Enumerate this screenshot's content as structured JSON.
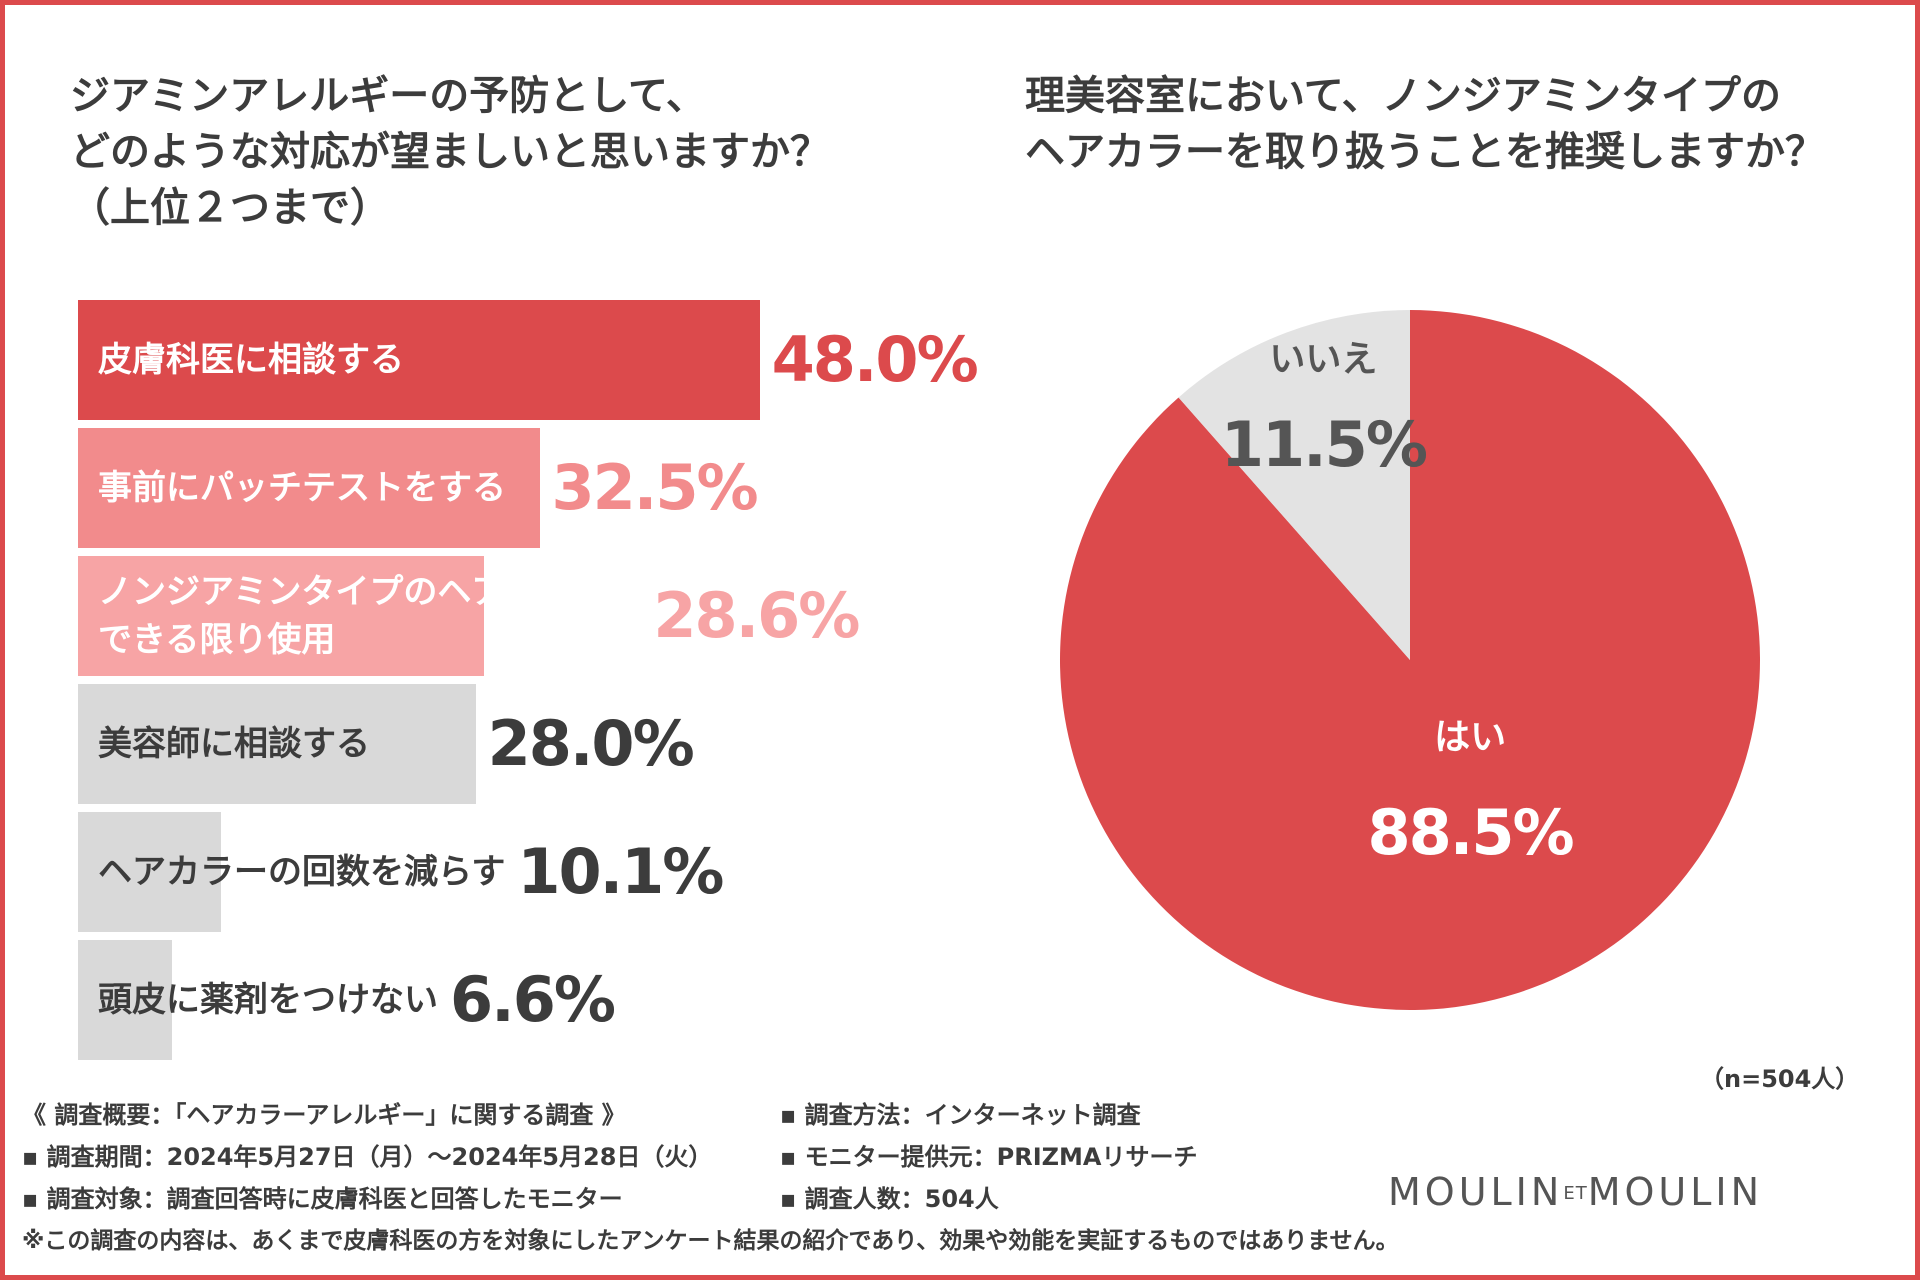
{
  "left_title": "ジアミンアレルギーの予防として、\nどのような対応が望ましいと思いますか？\n（上位２つまで）",
  "right_title": "理美容室において、ノンジアミンタイプの\nヘアカラーを取り扱うことを推奨しますか？",
  "chart_data": [
    {
      "type": "bar",
      "orientation": "horizontal",
      "title": "ジアミンアレルギーの予防として、どのような対応が望ましいと思いますか？（上位２つまで）",
      "categories": [
        "皮膚科医に相談する",
        "事前にパッチテストをする",
        "ノンジアミンタイプのヘアカラーを\nできる限り使用",
        "美容師に相談する",
        "ヘアカラーの回数を減らす",
        "頭皮に薬剤をつけない"
      ],
      "values": [
        48.0,
        32.5,
        28.6,
        28.0,
        10.1,
        6.6
      ],
      "value_labels": [
        "48.0%",
        "32.5%",
        "28.6%",
        "28.0%",
        "10.1%",
        "6.6%"
      ],
      "unit": "%",
      "xlim": [
        0,
        100
      ],
      "colors": [
        "#dc4a4c",
        "#f28b8c",
        "#f7a4a5",
        "#d9d9d9",
        "#d9d9d9",
        "#d9d9d9"
      ],
      "label_colors": [
        "#ffffff",
        "#ffffff",
        "#ffffff",
        "#3c3c3c",
        "#3c3c3c",
        "#3c3c3c"
      ],
      "value_colors": [
        "#dc4a4c",
        "#f28b8c",
        "#f7a4a5",
        "#3c3c3c",
        "#3c3c3c",
        "#3c3c3c"
      ]
    },
    {
      "type": "pie",
      "title": "理美容室において、ノンジアミンタイプのヘアカラーを取り扱うことを推奨しますか？",
      "slices": [
        {
          "label": "はい",
          "value": 88.5,
          "value_label": "88.5%",
          "color": "#dc4a4c",
          "text_color": "#ffffff"
        },
        {
          "label": "いいえ",
          "value": 11.5,
          "value_label": "11.5%",
          "color": "#e3e3e3",
          "text_color": "#555555"
        }
      ],
      "sample_size": "（n=504人）"
    }
  ],
  "notes": {
    "summary": "《 調査概要：「ヘアカラーアレルギー」に関する調査 》",
    "period": "▪ 調査期間：2024年5月27日（月）〜2024年5月28日（火）",
    "target": "▪ 調査対象：調査回答時に皮膚科医と回答したモニター",
    "method": "▪ 調査方法：インターネット調査",
    "provider": "▪ モニター提供元：PRIZMAリサーチ",
    "count": "▪ 調査人数：504人",
    "disclaimer": "※この調査の内容は、あくまで皮膚科医の方を対象にしたアンケート結果の紹介であり、効果や効能を実証するものではありません。"
  },
  "logo": {
    "left": "MOULIN",
    "et": "ET",
    "right": "MOULIN"
  },
  "colors": {
    "accent": "#dc4a4c",
    "border": "#dc4a4c",
    "text": "#3c3c3c"
  }
}
